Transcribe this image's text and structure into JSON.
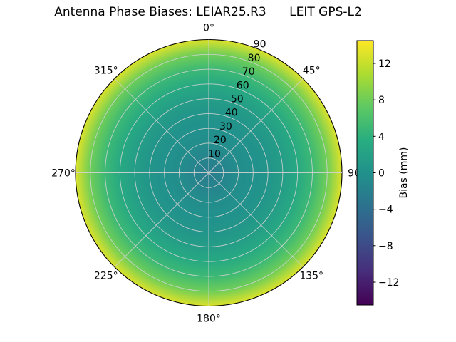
{
  "title": "Antenna Phase Biases: LEIAR25.R3      LEIT GPS-L2",
  "chart_data": {
    "type": "heatmap",
    "projection": "polar",
    "title": "Antenna Phase Biases: LEIAR25.R3      LEIT GPS-L2",
    "antenna": "LEIAR25.R3",
    "label_right": "LEIT GPS-L2",
    "theta_ticks": {
      "degrees": [
        0,
        45,
        90,
        135,
        180,
        225,
        270,
        315
      ],
      "labels": [
        "0°",
        "45°",
        "90",
        "135°",
        "180°",
        "225°",
        "270°",
        "315°"
      ]
    },
    "radial_ticks": {
      "values": [
        10,
        20,
        30,
        40,
        50,
        60,
        70,
        80,
        90
      ],
      "labels": [
        "10",
        "20",
        "30",
        "40",
        "50",
        "60",
        "70",
        "80",
        "90"
      ],
      "max": 90,
      "label_azimuth_deg": 22.5
    },
    "profile": {
      "zenith_deg": [
        0,
        10,
        20,
        30,
        40,
        50,
        60,
        70,
        80,
        90
      ],
      "bias_mm": [
        -2.5,
        -1.5,
        -0.5,
        0,
        0.5,
        1.5,
        3,
        5,
        8,
        13
      ]
    },
    "colorbar": {
      "label": "Bias (mm)",
      "vmin": -14.5,
      "vmax": 14.5,
      "tick_values": [
        12,
        8,
        4,
        0,
        -4,
        -8,
        -12
      ],
      "tick_labels": [
        "12",
        "8",
        "4",
        "0",
        "−4",
        "−8",
        "−12"
      ]
    },
    "colormap": {
      "name": "viridis",
      "anchors": [
        [
          0,
          "#440154"
        ],
        [
          0.125,
          "#472d7b"
        ],
        [
          0.25,
          "#3b528b"
        ],
        [
          0.375,
          "#2c728e"
        ],
        [
          0.5,
          "#21918c"
        ],
        [
          0.625,
          "#28ae80"
        ],
        [
          0.75,
          "#5ec962"
        ],
        [
          0.875,
          "#addc30"
        ],
        [
          1,
          "#fde725"
        ]
      ]
    },
    "grid": true,
    "background": "#ffffff"
  }
}
